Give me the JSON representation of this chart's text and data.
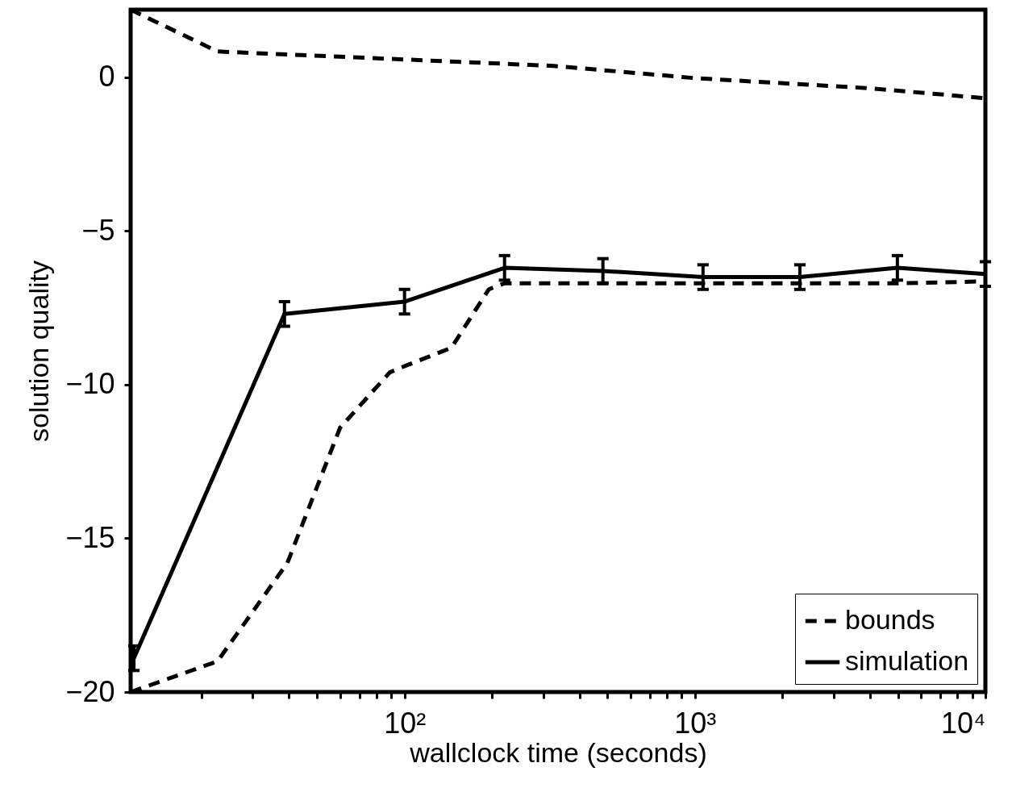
{
  "chart_data": {
    "type": "line",
    "xlabel": "wallclock time (seconds)",
    "ylabel": "solution quality",
    "log": "x",
    "xlim": [
      11.4,
      10000
    ],
    "xticks": [
      {
        "value": 20,
        "label": null
      },
      {
        "value": 30,
        "label": null
      },
      {
        "value": 40,
        "label": null
      },
      {
        "value": 50,
        "label": null
      },
      {
        "value": 60,
        "label": null
      },
      {
        "value": 70,
        "label": null
      },
      {
        "value": 80,
        "label": null
      },
      {
        "value": 90,
        "label": null
      },
      {
        "value": 100,
        "label": "10²"
      },
      {
        "value": 200,
        "label": null
      },
      {
        "value": 300,
        "label": null
      },
      {
        "value": 400,
        "label": null
      },
      {
        "value": 500,
        "label": null
      },
      {
        "value": 600,
        "label": null
      },
      {
        "value": 700,
        "label": null
      },
      {
        "value": 800,
        "label": null
      },
      {
        "value": 900,
        "label": null
      },
      {
        "value": 1000,
        "label": "10³"
      },
      {
        "value": 2000,
        "label": null
      },
      {
        "value": 3000,
        "label": null
      },
      {
        "value": 4000,
        "label": null
      },
      {
        "value": 5000,
        "label": null
      },
      {
        "value": 6000,
        "label": null
      },
      {
        "value": 7000,
        "label": null
      },
      {
        "value": 8000,
        "label": null
      },
      {
        "value": 9000,
        "label": null
      },
      {
        "value": 10000,
        "label": "10⁴"
      }
    ],
    "ylim": [
      -20,
      2.2
    ],
    "yticks": [
      -20,
      -15,
      -10,
      -5,
      0
    ],
    "grid": false,
    "legend": "bottom right",
    "series": [
      {
        "name": "bounds",
        "color": "#000000",
        "line_style": "dashed",
        "x": [
          11.4,
          22.7,
          39.5,
          60,
          89,
          100,
          145,
          195,
          221,
          480,
          1070,
          2300,
          5000,
          10000
        ],
        "values": [
          -20,
          -19,
          -15.8,
          -11.4,
          -9.6,
          -9.4,
          -8.8,
          -6.9,
          -6.7,
          -6.7,
          -6.7,
          -6.7,
          -6.7,
          -6.64
        ]
      },
      {
        "name": null,
        "color": "#000000",
        "line_style": "dashed",
        "x": [
          11.4,
          22.7,
          100,
          326,
          1010,
          3900,
          10000
        ],
        "values": [
          2.2,
          0.84,
          0.58,
          0.37,
          -0.03,
          -0.35,
          -0.68
        ]
      },
      {
        "name": "simulation",
        "color": "#000000",
        "line_style": "solid",
        "x": [
          11.7,
          38.6,
          100,
          221,
          482,
          1066,
          2297,
          4977,
          10000
        ],
        "values": [
          -18.9,
          -7.7,
          -7.3,
          -6.2,
          -6.3,
          -6.5,
          -6.5,
          -6.2,
          -6.4
        ],
        "errors": [
          0.4,
          0.4,
          0.4,
          0.4,
          0.4,
          0.4,
          0.4,
          0.4,
          0.4
        ]
      }
    ]
  }
}
